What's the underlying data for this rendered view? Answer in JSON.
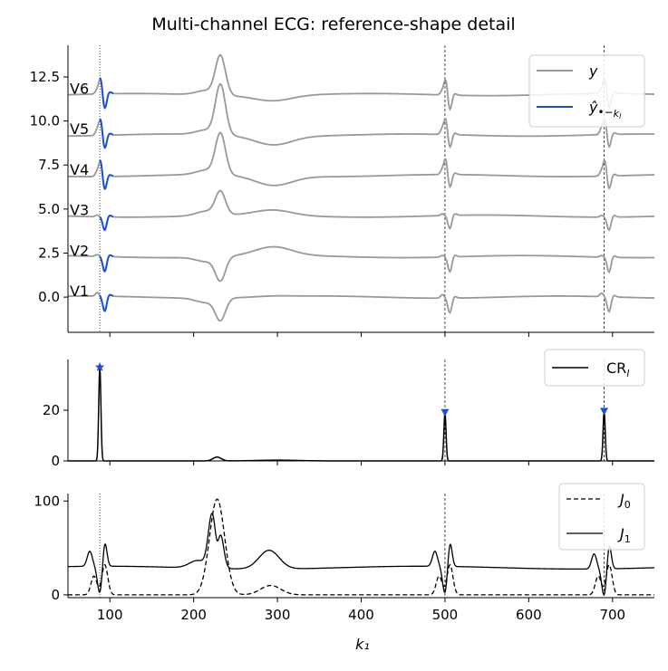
{
  "title": "Multi-channel ECG: reference-shape detail",
  "colors": {
    "signal": "#999999",
    "recon": "#1a4fd6",
    "marker": "#1a4fd6",
    "line": "#000000"
  },
  "chart_data": [
    {
      "type": "line",
      "name": "ecg-panel",
      "xlim": [
        50,
        750
      ],
      "ylim": [
        -2.0,
        14.3
      ],
      "yticks": [
        0.0,
        2.5,
        5.0,
        7.5,
        10.0,
        12.5
      ],
      "ytick_labels": [
        "0.0",
        "2.5",
        "5.0",
        "7.5",
        "10.0",
        "12.5"
      ],
      "channels": [
        "V1",
        "V2",
        "V3",
        "V4",
        "V5",
        "V6"
      ],
      "channel_offsets": [
        0.0,
        2.3,
        4.6,
        6.9,
        9.2,
        11.5
      ],
      "vlines": [
        {
          "x": 88,
          "style": "dotted"
        },
        {
          "x": 500,
          "style": "dashed"
        },
        {
          "x": 690,
          "style": "dashed"
        }
      ],
      "legend": {
        "position": "top-right",
        "entries": [
          {
            "label": "y",
            "style": "signal"
          },
          {
            "label": "ŷ•−k_l",
            "style": "recon"
          }
        ]
      },
      "recon_window": [
        88,
        104
      ]
    },
    {
      "type": "line",
      "name": "cr-panel",
      "xlim": [
        50,
        750
      ],
      "ylim": [
        0,
        40
      ],
      "yticks": [
        0,
        20
      ],
      "ytick_labels": [
        "0",
        "20"
      ],
      "peaks": [
        {
          "x": 88,
          "y": 37,
          "marker": "star"
        },
        {
          "x": 500,
          "y": 19,
          "marker": "triangle-down"
        },
        {
          "x": 690,
          "y": 19.5,
          "marker": "triangle-down"
        }
      ],
      "vlines": [
        {
          "x": 500,
          "style": "dashed"
        },
        {
          "x": 690,
          "style": "dashed"
        }
      ],
      "legend": {
        "position": "top-right",
        "entries": [
          {
            "label": "CR_l",
            "style": "solid"
          }
        ]
      }
    },
    {
      "type": "line",
      "name": "cost-panel",
      "xlim": [
        50,
        750
      ],
      "ylim": [
        -3,
        108
      ],
      "yticks": [
        0,
        100
      ],
      "ytick_labels": [
        "0",
        "100"
      ],
      "xticks": [
        100,
        200,
        300,
        400,
        500,
        600,
        700
      ],
      "xtick_labels": [
        "100",
        "200",
        "300",
        "400",
        "500",
        "600",
        "700"
      ],
      "xlabel": "k₁",
      "vlines": [
        {
          "x": 88,
          "style": "dotted"
        },
        {
          "x": 500,
          "style": "dashed"
        },
        {
          "x": 690,
          "style": "dashed"
        }
      ],
      "legend": {
        "position": "top-right",
        "entries": [
          {
            "label": "J_0",
            "style": "dashed"
          },
          {
            "label": "J_1",
            "style": "solid"
          }
        ]
      }
    }
  ]
}
